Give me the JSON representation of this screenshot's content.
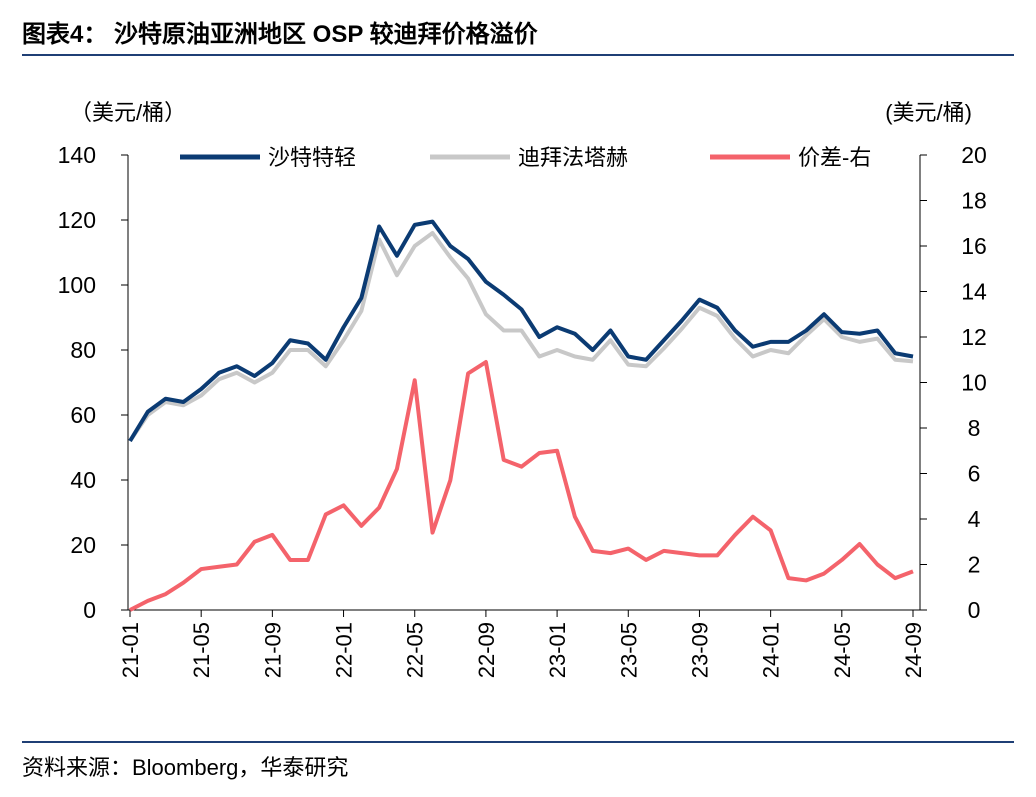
{
  "title": "图表4：  沙特原油亚洲地区 OSP 较迪拜价格溢价",
  "source": "资料来源：Bloomberg，华泰研究",
  "chart_data": {
    "type": "line",
    "y_label": "（美元/桶）",
    "y2_label": "(美元/桶)",
    "categories": [
      "21-01",
      null,
      null,
      null,
      "21-05",
      null,
      null,
      null,
      "21-09",
      null,
      null,
      null,
      "22-01",
      null,
      null,
      null,
      "22-05",
      null,
      null,
      null,
      "22-09",
      null,
      null,
      null,
      "23-01",
      null,
      null,
      null,
      "23-05",
      null,
      null,
      null,
      "23-09",
      null,
      null,
      null,
      "24-01",
      null,
      null,
      null,
      "24-05",
      null,
      null,
      null,
      "24-09"
    ],
    "series": [
      {
        "name": "沙特特轻",
        "color": "#0b3b73",
        "values": [
          52,
          61,
          65,
          64,
          68,
          73,
          75,
          72,
          76,
          83,
          82,
          77,
          87,
          96,
          118,
          109,
          118.5,
          119.5,
          112,
          108,
          101,
          97,
          92.5,
          84,
          87,
          85,
          80,
          86,
          78,
          77,
          83,
          89,
          95.5,
          93,
          86,
          81,
          82.5,
          82.5,
          86,
          91,
          85.5,
          85,
          86,
          79,
          78
        ]
      },
      {
        "name": "迪拜法塔赫",
        "color": "#c8c8c8",
        "values": [
          52,
          60,
          64,
          63,
          66,
          71,
          73,
          70,
          73,
          80,
          80,
          75,
          83,
          92,
          114,
          103,
          112,
          116,
          108.5,
          102,
          91,
          86,
          86,
          78,
          80,
          78,
          77,
          83,
          75.5,
          75,
          80.5,
          86.5,
          93,
          90.5,
          83.5,
          78,
          80,
          79,
          84.5,
          89.5,
          84,
          82.5,
          83.5,
          77,
          76.5
        ]
      },
      {
        "name": "价差-右",
        "color": "#f4636b",
        "axis": "y2",
        "values": [
          0,
          0.4,
          0.7,
          1.2,
          1.8,
          1.9,
          2.0,
          3.0,
          3.3,
          2.2,
          2.2,
          4.2,
          4.6,
          3.7,
          4.5,
          6.2,
          10.1,
          3.4,
          5.7,
          10.4,
          10.9,
          6.6,
          6.3,
          6.9,
          7.0,
          4.1,
          2.6,
          2.5,
          2.7,
          2.2,
          2.6,
          2.5,
          2.4,
          2.4,
          3.3,
          4.1,
          3.5,
          1.4,
          1.3,
          1.6,
          2.2,
          2.9,
          2.0,
          1.4,
          1.7
        ]
      }
    ],
    "ylim": [
      0,
      140
    ],
    "yticks": [
      0,
      20,
      40,
      60,
      80,
      100,
      120,
      140
    ],
    "y2lim": [
      0,
      20
    ],
    "y2ticks": [
      0,
      2,
      4,
      6,
      8,
      10,
      12,
      14,
      16,
      18,
      20
    ]
  }
}
